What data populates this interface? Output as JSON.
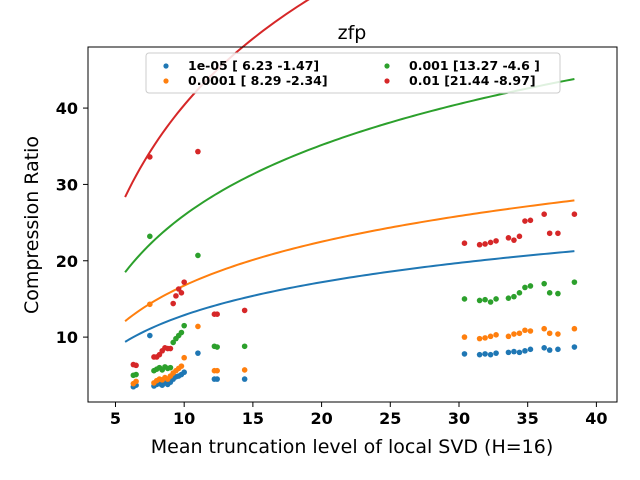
{
  "chart_data": {
    "type": "scatter",
    "title": "zfp",
    "xlabel": "Mean truncation level of local SVD (H=16)",
    "ylabel": "Compression Ratio",
    "xlim": [
      3,
      41.5
    ],
    "ylim": [
      1.5,
      48
    ],
    "xticks": [
      5,
      10,
      15,
      20,
      25,
      30,
      35,
      40
    ],
    "yticks": [
      10,
      20,
      30,
      40
    ],
    "legend_position": "upper center",
    "legend_columns": 2,
    "grid": false,
    "x_scatter": [
      6.3,
      6.5,
      7.5,
      7.8,
      8.0,
      8.2,
      8.4,
      8.6,
      8.8,
      9.0,
      9.2,
      9.4,
      9.6,
      9.8,
      10.0,
      11.0,
      12.2,
      12.4,
      14.4,
      30.4,
      31.5,
      31.9,
      32.3,
      32.7,
      33.6,
      34.0,
      34.4,
      34.8,
      35.2,
      36.2,
      36.6,
      37.2,
      38.4
    ],
    "fit_x_range": [
      5.7,
      38.4
    ],
    "series": [
      {
        "name": "1e-05 [ 6.23 -1.47]",
        "color": "#1f77b4",
        "fit": [
          6.23,
          -1.47
        ],
        "y": [
          3.5,
          3.7,
          10.2,
          3.6,
          3.8,
          3.9,
          3.7,
          4.0,
          3.8,
          4.1,
          4.5,
          4.8,
          4.9,
          5.1,
          5.4,
          7.9,
          4.5,
          4.5,
          4.5,
          7.8,
          7.7,
          7.8,
          7.7,
          7.9,
          8.0,
          8.1,
          8.0,
          8.2,
          8.4,
          8.6,
          8.3,
          8.4,
          8.7
        ]
      },
      {
        "name": "0.0001 [ 8.29 -2.34]",
        "color": "#ff7f0e",
        "fit": [
          8.29,
          -2.34
        ],
        "y": [
          3.9,
          4.2,
          14.3,
          4.0,
          4.3,
          4.5,
          4.4,
          4.7,
          4.5,
          4.9,
          5.3,
          5.6,
          5.9,
          6.2,
          7.3,
          11.4,
          5.6,
          5.6,
          5.7,
          10.0,
          9.8,
          9.9,
          10.1,
          10.3,
          10.1,
          10.4,
          10.5,
          10.9,
          10.8,
          11.1,
          10.5,
          10.4,
          11.1
        ]
      },
      {
        "name": "0.001 [13.27 -4.6 ]",
        "color": "#2ca02c",
        "fit": [
          13.27,
          -4.6
        ],
        "y": [
          5.0,
          5.1,
          23.2,
          5.6,
          5.8,
          6.0,
          5.7,
          6.1,
          5.9,
          6.0,
          9.3,
          9.8,
          10.2,
          10.6,
          11.5,
          20.7,
          8.8,
          8.7,
          8.8,
          15.0,
          14.8,
          14.9,
          14.6,
          15.0,
          15.1,
          15.3,
          15.8,
          16.5,
          16.7,
          17.0,
          15.8,
          15.7,
          17.2
        ]
      },
      {
        "name": "0.01 [21.44 -8.97]",
        "color": "#d62728",
        "fit": [
          21.44,
          -8.97
        ],
        "y": [
          6.4,
          6.3,
          33.6,
          7.4,
          7.4,
          7.7,
          8.2,
          8.6,
          8.5,
          8.5,
          14.4,
          15.4,
          16.3,
          15.8,
          17.2,
          34.3,
          13.0,
          13.0,
          13.5,
          22.3,
          22.1,
          22.2,
          22.4,
          22.6,
          23.0,
          22.7,
          23.2,
          25.2,
          25.3,
          26.1,
          23.6,
          23.6,
          26.1
        ]
      }
    ]
  }
}
